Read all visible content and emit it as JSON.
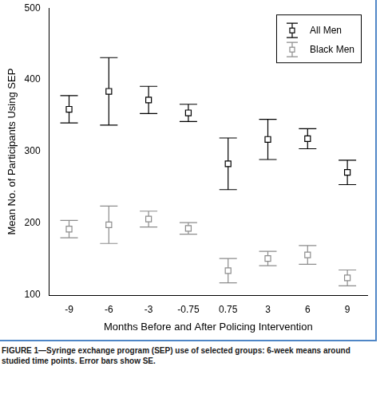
{
  "chart_data": {
    "type": "scatter",
    "caption": "FIGURE 1—Syringe exchange program (SEP) use of selected groups: 6-week means around studied time points. Error bars show SE.",
    "x_label": "Months Before and After Policing Intervention",
    "y_label": "Mean No. of Participants Using SEP",
    "categories": [
      "-9",
      "-6",
      "-3",
      "-0.75",
      "0.75",
      "3",
      "6",
      "9"
    ],
    "series": [
      {
        "name": "All Men",
        "color": "#000000",
        "marker": "square",
        "values": [
          359,
          384,
          372,
          354,
          283,
          317,
          318,
          271
        ],
        "errors": [
          19,
          47,
          19,
          12,
          36,
          28,
          14,
          17
        ]
      },
      {
        "name": "Black Men",
        "color": "#8c8c8c",
        "marker": "square",
        "values": [
          192,
          198,
          206,
          193,
          134,
          151,
          156,
          124
        ],
        "errors": [
          12,
          26,
          11,
          8,
          17,
          10,
          13,
          11
        ]
      }
    ],
    "ylim": [
      100,
      500
    ],
    "yticks": [
      100,
      200,
      300,
      400,
      500
    ],
    "grid": false,
    "legend": "upper right"
  }
}
